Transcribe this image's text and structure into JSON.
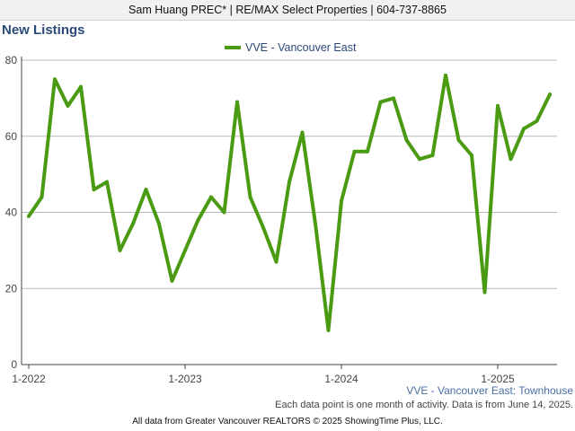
{
  "header": {
    "text": "Sam Huang PREC* | RE/MAX Select Properties | 604-737-8865"
  },
  "chart_data": {
    "type": "line",
    "title": "New Listings",
    "subtitle": "",
    "xlabel": "",
    "ylabel": "",
    "ylim": [
      0,
      80
    ],
    "yticks": [
      0,
      20,
      40,
      60,
      80
    ],
    "xticks": [
      "1-2022",
      "1-2023",
      "1-2024",
      "1-2025"
    ],
    "grid": true,
    "legend_position": "top-center",
    "x": [
      "2022-01",
      "2022-02",
      "2022-03",
      "2022-04",
      "2022-05",
      "2022-06",
      "2022-07",
      "2022-08",
      "2022-09",
      "2022-10",
      "2022-11",
      "2022-12",
      "2023-01",
      "2023-02",
      "2023-03",
      "2023-04",
      "2023-05",
      "2023-06",
      "2023-07",
      "2023-08",
      "2023-09",
      "2023-10",
      "2023-11",
      "2023-12",
      "2024-01",
      "2024-02",
      "2024-03",
      "2024-04",
      "2024-05",
      "2024-06",
      "2024-07",
      "2024-08",
      "2024-09",
      "2024-10",
      "2024-11",
      "2024-12",
      "2025-01",
      "2025-02",
      "2025-03",
      "2025-04",
      "2025-05"
    ],
    "series": [
      {
        "name": "VVE - Vancouver East",
        "color": "#4a9a12",
        "values": [
          39,
          44,
          75,
          68,
          73,
          46,
          48,
          30,
          37,
          46,
          37,
          22,
          30,
          38,
          44,
          40,
          69,
          44,
          36,
          27,
          48,
          61,
          37,
          9,
          43,
          56,
          56,
          69,
          70,
          59,
          54,
          55,
          76,
          59,
          55,
          19,
          68,
          54,
          62,
          64,
          71
        ]
      }
    ]
  },
  "footer": {
    "series_caption": "VVE - Vancouver East: Townhouse",
    "note": "Each data point is one month of activity. Data is from June 14, 2025.",
    "source": "All data from Greater Vancouver REALTORS © 2025 ShowingTime Plus, LLC."
  }
}
